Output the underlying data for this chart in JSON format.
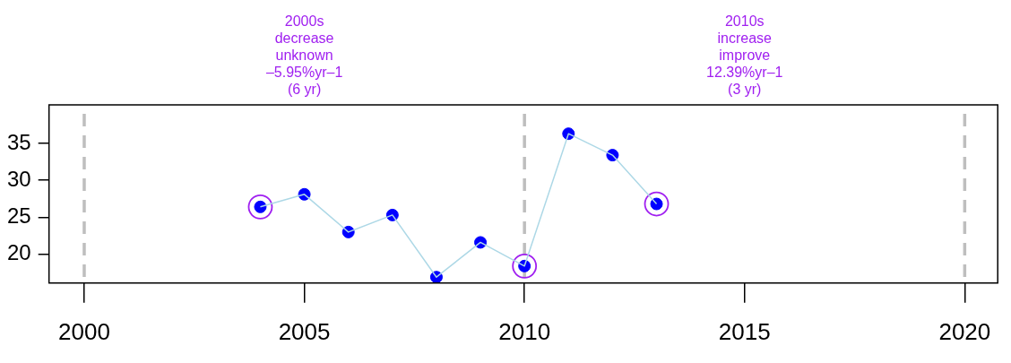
{
  "chart_data": {
    "type": "line",
    "x": [
      2004,
      2005,
      2006,
      2007,
      2008,
      2009,
      2010,
      2011,
      2012,
      2013
    ],
    "series": [
      {
        "color": "#add8e6",
        "marker": "none",
        "values": [
          26.4,
          28.1,
          23.0,
          25.3,
          16.9,
          21.6,
          18.4,
          36.3,
          33.4,
          26.8
        ]
      },
      {
        "type": "scatter",
        "color": "#0000ff",
        "values": [
          26.4,
          28.1,
          23.0,
          25.3,
          16.9,
          21.6,
          18.4,
          36.3,
          33.4,
          26.8
        ]
      },
      {
        "type": "scatter",
        "color": "#a020f0",
        "x": [
          2004,
          2010,
          2013
        ],
        "values": [
          26.4,
          18.4,
          26.8
        ]
      }
    ],
    "xlim": [
      1999.2,
      2020.75
    ],
    "xticks": [
      2000,
      2005,
      2010,
      2015,
      2020
    ],
    "ylim": [
      16.1,
      40.2
    ],
    "yticks": [
      20,
      25,
      30,
      35
    ],
    "grid": false,
    "legend": false,
    "marker": "circle",
    "ref_lines": [
      {
        "axis": "x",
        "value": 2000,
        "color": "#bebebe",
        "line_style": "dashed"
      },
      {
        "axis": "x",
        "value": 2010,
        "color": "#bebebe",
        "line_style": "dashed"
      },
      {
        "axis": "x",
        "value": 2020,
        "color": "#bebebe",
        "line_style": "dashed"
      }
    ],
    "annotations": [
      "2000s\ndecrease\nunknown\n–5.95%yr–1\n(6 yr)",
      "2010s\nincrease\nimprove\n12.39%yr–1\n(3 yr)"
    ]
  }
}
